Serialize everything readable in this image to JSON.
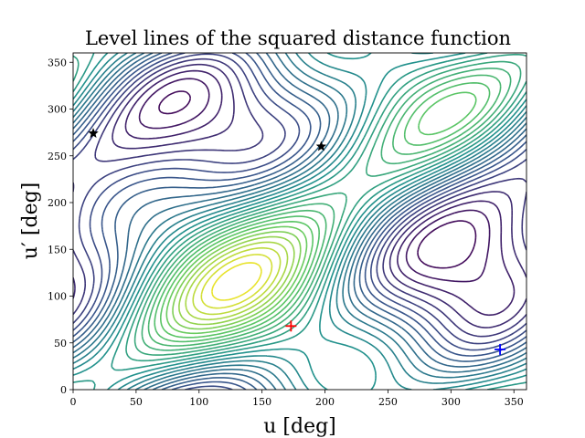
{
  "chart_data": {
    "type": "contour",
    "title": "Level lines of the squared distance function",
    "xlabel": "u [deg]",
    "ylabel": "u′ [deg]",
    "xlim": [
      0,
      360
    ],
    "ylim": [
      0,
      360
    ],
    "xticks": [
      0,
      50,
      100,
      150,
      200,
      250,
      300,
      350
    ],
    "yticks": [
      0,
      50,
      100,
      150,
      200,
      250,
      300,
      350
    ],
    "grid": false,
    "colormap": [
      "#440154",
      "#3b528b",
      "#21918c",
      "#5ec962",
      "#fde725"
    ],
    "markers": [
      {
        "name": "red-plus",
        "symbol": "+",
        "color": "#ff0000",
        "x": 173,
        "y": 68
      },
      {
        "name": "blue-plus",
        "symbol": "+",
        "color": "#0000ff",
        "x": 339,
        "y": 43
      },
      {
        "name": "black-star",
        "symbol": "star",
        "color": "#000000",
        "x": 16,
        "y": 274
      },
      {
        "name": "black-star",
        "symbol": "star",
        "color": "#000000",
        "x": 197,
        "y": 260
      }
    ]
  }
}
